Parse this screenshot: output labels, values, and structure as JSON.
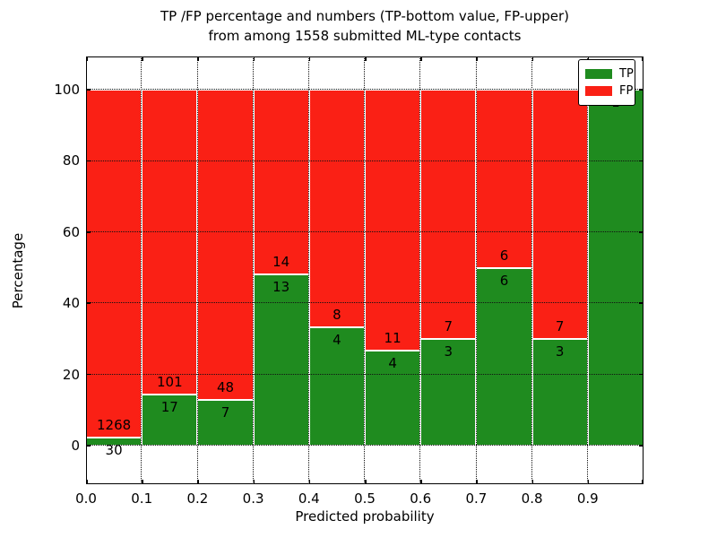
{
  "title": {
    "line1": "TP /FP percentage and numbers (TP-bottom value, FP-upper)",
    "line2": "from among 1558 submitted ML-type contacts"
  },
  "axes": {
    "x_label": "Predicted probability",
    "y_label": "Percentage",
    "x_ticks": [
      "0.0",
      "0.1",
      "0.2",
      "0.3",
      "0.4",
      "0.5",
      "0.6",
      "0.7",
      "0.8",
      "0.9"
    ],
    "y_ticks": [
      "0",
      "20",
      "40",
      "60",
      "80",
      "100"
    ]
  },
  "legend": {
    "items": [
      {
        "label": "TP",
        "color": "#1f8b1f"
      },
      {
        "label": "FP",
        "color": "#fa2015"
      }
    ]
  },
  "colors": {
    "tp_green": "#1f8b1f",
    "fp_red": "#fa2015",
    "bar_edge": "#ffffff",
    "grid": "#111111"
  },
  "chart_data": {
    "type": "bar",
    "stacked": true,
    "normalized_to": 100,
    "title": "TP /FP percentage and numbers (TP-bottom value, FP-upper) from among 1558 submitted ML-type contacts",
    "xlabel": "Predicted probability",
    "ylabel": "Percentage",
    "xlim": [
      0.0,
      1.0
    ],
    "ylim": [
      0,
      100
    ],
    "grid": true,
    "legend_position": "upper right",
    "total_contacts": 1558,
    "categories": [
      "0.0-0.1",
      "0.1-0.2",
      "0.2-0.3",
      "0.3-0.4",
      "0.4-0.5",
      "0.5-0.6",
      "0.6-0.7",
      "0.7-0.8",
      "0.8-0.9",
      "0.9-1.0"
    ],
    "series": [
      {
        "name": "TP",
        "values": [
          30,
          17,
          7,
          13,
          4,
          4,
          3,
          6,
          3,
          1
        ]
      },
      {
        "name": "FP",
        "values": [
          1268,
          101,
          48,
          14,
          8,
          11,
          7,
          6,
          7,
          0
        ]
      }
    ],
    "tp_percentages": [
      2.31,
      14.41,
      12.73,
      48.15,
      33.33,
      26.67,
      30.0,
      50.0,
      30.0,
      100.0
    ],
    "bar_value_labels": {
      "fp_upper": [
        "1268",
        "101",
        "48",
        "14",
        "8",
        "11",
        "7",
        "6",
        "7",
        ""
      ],
      "tp_bottom": [
        "30",
        "17",
        "7",
        "13",
        "4",
        "4",
        "3",
        "6",
        "3",
        "1"
      ]
    }
  }
}
